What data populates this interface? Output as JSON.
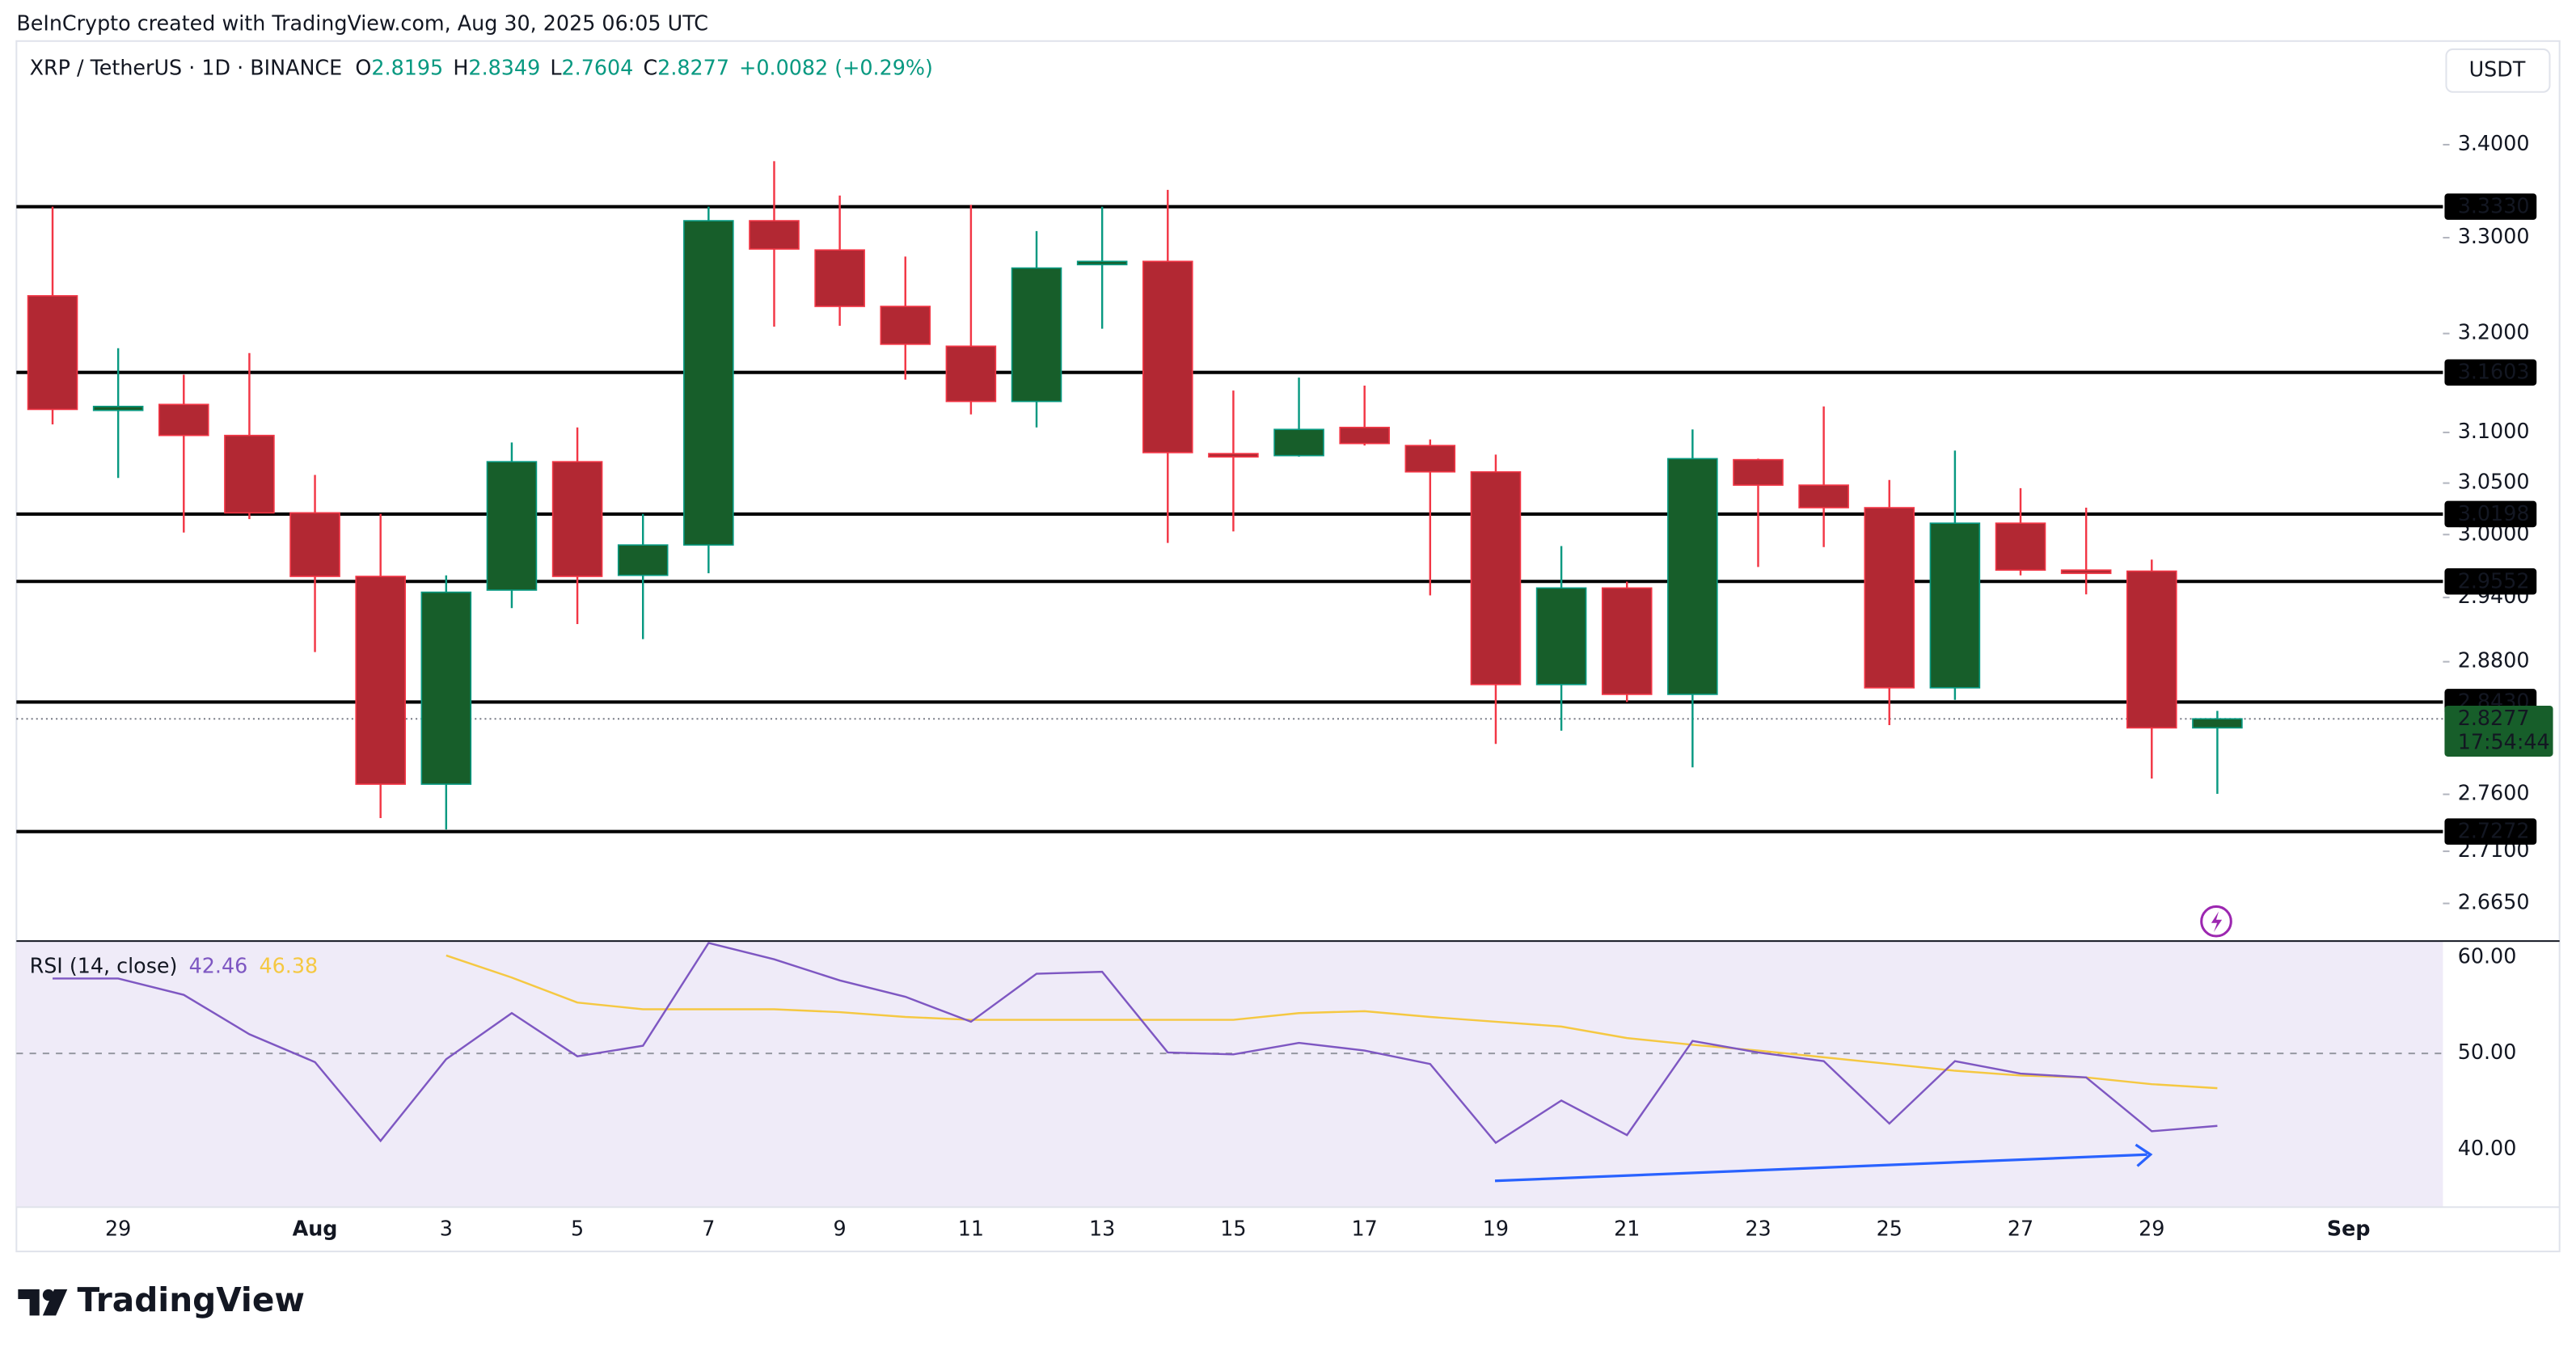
{
  "chart_data": {
    "type": "candlestick",
    "attribution": "BeInCrypto created with TradingView.com, Aug 30, 2025 06:05 UTC",
    "symbol": "XRP / TetherUS · 1D · BINANCE",
    "labels": {
      "open": "O",
      "high": "H",
      "low": "L",
      "close": "C"
    },
    "change": "+0.0082 (+0.29%)",
    "currency": "USDT",
    "countdown": "17:54:44",
    "brand": "TradingView",
    "log_scale": true,
    "grid": false,
    "up_color": "#175e2a",
    "up_wick": "#089981",
    "down_color": "#b22833",
    "down_wick": "#f23645",
    "level_color": "#000000",
    "categories": [
      null,
      "29",
      null,
      null,
      "Aug",
      null,
      "3",
      null,
      "5",
      null,
      "7",
      null,
      "9",
      null,
      "11",
      null,
      "13",
      null,
      "15",
      null,
      "17",
      null,
      "19",
      null,
      "21",
      null,
      "23",
      null,
      "25",
      null,
      "27",
      null,
      "29",
      null,
      null,
      "Sep"
    ],
    "open": [
      3.239,
      3.122,
      3.128,
      3.097,
      3.021,
      2.96,
      2.769,
      2.947,
      3.071,
      2.961,
      2.99,
      3.318,
      3.287,
      3.228,
      3.187,
      3.131,
      3.273,
      3.275,
      3.079,
      3.077,
      3.105,
      3.087,
      3.061,
      2.859,
      2.949,
      2.85,
      3.073,
      3.048,
      3.026,
      2.856,
      3.011,
      2.966,
      2.965,
      2.8195,
      null,
      null
    ],
    "high": [
      3.333,
      3.185,
      3.158,
      3.18,
      3.058,
      3.02,
      2.961,
      3.09,
      3.105,
      3.02,
      3.333,
      3.382,
      3.345,
      3.28,
      3.335,
      3.307,
      3.333,
      3.351,
      3.142,
      3.155,
      3.147,
      3.093,
      3.078,
      2.989,
      2.955,
      3.103,
      3.074,
      3.126,
      3.053,
      3.082,
      3.045,
      3.026,
      2.976,
      2.8349,
      null,
      null
    ],
    "low": [
      3.108,
      3.055,
      3.002,
      3.015,
      2.889,
      2.739,
      2.729,
      2.93,
      2.915,
      2.901,
      2.963,
      3.207,
      3.208,
      3.153,
      3.118,
      3.105,
      3.205,
      2.992,
      3.003,
      3.076,
      3.087,
      2.942,
      2.805,
      2.817,
      2.843,
      2.784,
      2.969,
      2.988,
      2.822,
      2.845,
      2.961,
      2.943,
      2.774,
      2.7604,
      null,
      null
    ],
    "close": [
      3.123,
      3.126,
      3.097,
      3.021,
      2.96,
      2.769,
      2.945,
      3.071,
      2.96,
      2.99,
      3.318,
      3.288,
      3.228,
      3.189,
      3.131,
      3.268,
      3.275,
      3.08,
      3.077,
      3.103,
      3.089,
      3.061,
      2.859,
      2.949,
      2.85,
      3.074,
      3.048,
      3.026,
      2.856,
      3.011,
      2.966,
      2.965,
      2.8195,
      2.8277,
      null,
      null
    ],
    "ylim": [
      2.633,
      3.515
    ],
    "yticks": [
      {
        "value": 3.4,
        "label": "3.4000"
      },
      {
        "value": 3.3,
        "label": "3.3000"
      },
      {
        "value": 3.2,
        "label": "3.2000"
      },
      {
        "value": 3.1,
        "label": "3.1000"
      },
      {
        "value": 3.05,
        "label": "3.0500"
      },
      {
        "value": 3.0,
        "label": "3.0000"
      },
      {
        "value": 2.94,
        "label": "2.9400"
      },
      {
        "value": 2.88,
        "label": "2.8800"
      },
      {
        "value": 2.76,
        "label": "2.7600"
      },
      {
        "value": 2.71,
        "label": "2.7100"
      },
      {
        "value": 2.665,
        "label": "2.6650"
      }
    ],
    "levels": [
      {
        "value": 3.333,
        "label": "3.3330"
      },
      3.1603,
      3.0198,
      2.9552,
      {
        "value": 2.843,
        "label": "2.8430"
      },
      2.7272
    ],
    "rsi": {
      "title": "RSI (14, close)",
      "color": "#7e57c2",
      "ma_color": "#f5c842",
      "values": [
        57.8,
        57.8,
        56.1,
        52.0,
        49.1,
        40.9,
        49.4,
        54.2,
        49.7,
        50.8,
        61.5,
        59.8,
        57.6,
        55.9,
        53.3,
        58.3,
        58.5,
        50.1,
        49.9,
        51.1,
        50.3,
        48.9,
        40.7,
        45.1,
        41.5,
        51.3,
        50.1,
        49.2,
        42.7,
        49.2,
        47.9,
        47.5,
        41.9,
        42.46,
        null,
        null
      ],
      "ma_values": [
        null,
        null,
        null,
        null,
        null,
        null,
        60.2,
        57.9,
        55.3,
        54.6,
        54.6,
        54.6,
        54.3,
        53.8,
        53.5,
        53.5,
        53.5,
        53.5,
        53.5,
        54.2,
        54.4,
        53.8,
        53.3,
        52.8,
        51.6,
        50.9,
        50.3,
        49.6,
        48.9,
        48.2,
        47.7,
        47.5,
        46.8,
        46.38,
        null,
        null
      ],
      "ylim": [
        34.0,
        61.7
      ],
      "yticks": [
        {
          "value": 60,
          "label": "60.00"
        },
        {
          "value": 50,
          "label": "50.00"
        },
        {
          "value": 40,
          "label": "40.00"
        }
      ]
    }
  }
}
